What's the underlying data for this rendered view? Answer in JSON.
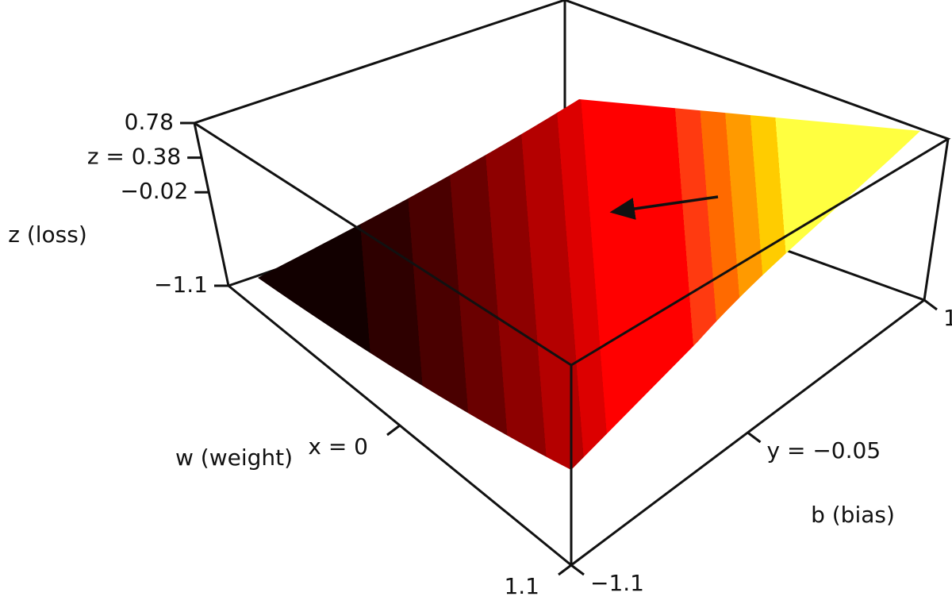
{
  "chart_data": {
    "type": "surface3d",
    "zlabel": "z (loss)",
    "xlabel": "w (weight)",
    "ylabel": "b (bias)",
    "zlim": [
      -1.1,
      0.78
    ],
    "zticks": [
      {
        "value": 0.78,
        "label": "0.78"
      },
      {
        "value": 0.38,
        "label": "z = 0.38"
      },
      {
        "value": -0.02,
        "label": "−0.02"
      },
      {
        "value": -1.1,
        "label": "−1.1"
      }
    ],
    "xlim": [
      -1.1,
      1.1
    ],
    "xticks": [
      {
        "value": 0,
        "label": "x = 0"
      },
      {
        "value": 1.1,
        "label": "1.1"
      }
    ],
    "ylim": [
      -1.1,
      1
    ],
    "yticks": [
      {
        "value": -1.1,
        "label": "−1.1"
      },
      {
        "value": -0.05,
        "label": "y = −0.05"
      },
      {
        "value": 1,
        "label": "1"
      }
    ]
  }
}
